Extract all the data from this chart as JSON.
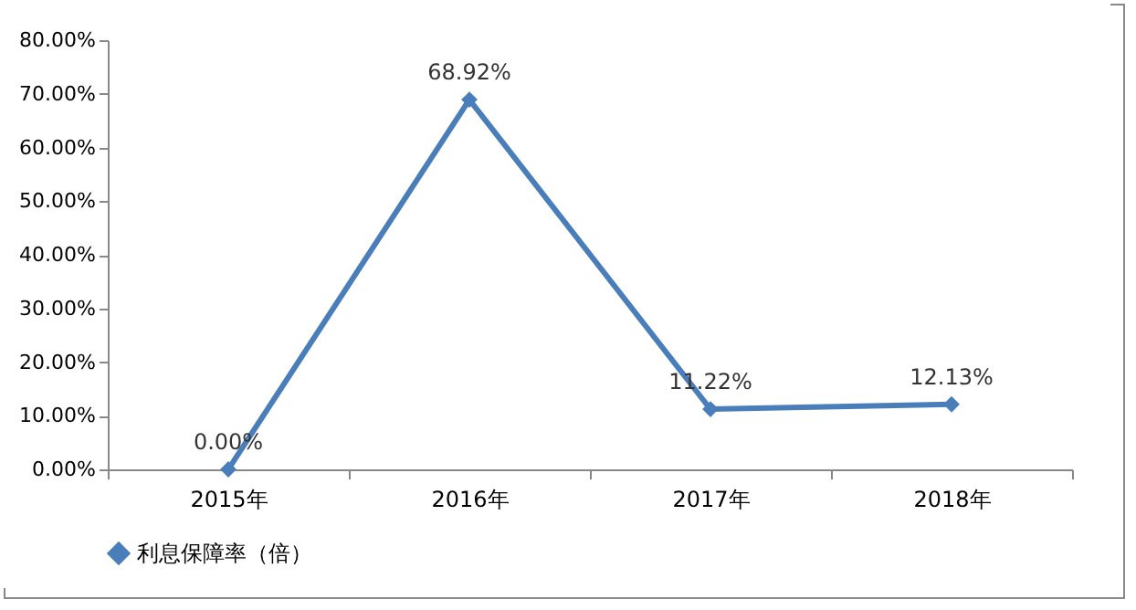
{
  "chart_data": {
    "type": "line",
    "categories": [
      "2015年",
      "2016年",
      "2017年",
      "2018年"
    ],
    "series": [
      {
        "name": "利息保障率（倍）",
        "color": "#4a7ebb",
        "values": [
          0,
          68.92,
          11.22,
          12.13
        ],
        "value_labels": [
          "0.00%",
          "68.92%",
          "11.22%",
          "12.13%"
        ]
      }
    ],
    "ylim": [
      0,
      80
    ],
    "yticks": [
      {
        "value": 0,
        "label": "0.00%"
      },
      {
        "value": 10,
        "label": "10.00%"
      },
      {
        "value": 20,
        "label": "20.00%"
      },
      {
        "value": 30,
        "label": "30.00%"
      },
      {
        "value": 40,
        "label": "40.00%"
      },
      {
        "value": 50,
        "label": "50.00%"
      },
      {
        "value": 60,
        "label": "60.00%"
      },
      {
        "value": 70,
        "label": "70.00%"
      },
      {
        "value": 80,
        "label": "80.00%"
      }
    ],
    "grid": false,
    "legend": "bottom",
    "marker": "diamond",
    "line_style": "solid"
  }
}
